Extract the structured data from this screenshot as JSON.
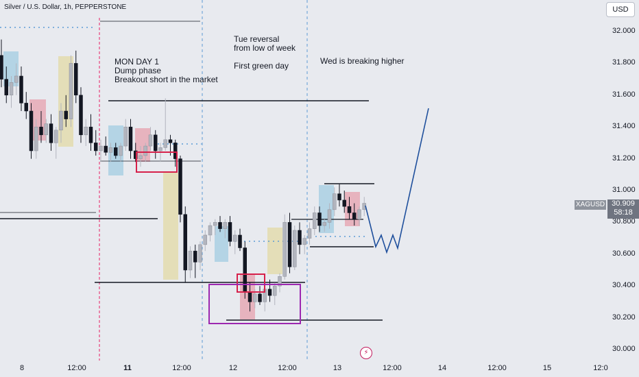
{
  "header": {
    "title": "Silver / U.S. Dollar, 1h, PEPPERSTONE",
    "currency_button": "USD"
  },
  "annotations": {
    "mon": [
      "MON DAY 1",
      "Dump phase",
      "Breakout short in the market"
    ],
    "tue": [
      "Tue reversal",
      "from low of week",
      "",
      "First green day"
    ],
    "wed": [
      "Wed is breaking higher"
    ]
  },
  "price_axis": {
    "ticks": [
      "32.000",
      "31.800",
      "31.600",
      "31.400",
      "31.200",
      "31.000",
      "30.800",
      "30.600",
      "30.400",
      "30.200",
      "30.000"
    ],
    "symbol": "XAGUSD",
    "last_price": "30.909",
    "countdown": "58:18"
  },
  "time_axis": {
    "ticks": [
      {
        "label": "8",
        "bold": false
      },
      {
        "label": "12:00",
        "bold": false
      },
      {
        "label": "11",
        "bold": true
      },
      {
        "label": "12:00",
        "bold": false
      },
      {
        "label": "12",
        "bold": false
      },
      {
        "label": "12:00",
        "bold": false
      },
      {
        "label": "13",
        "bold": false
      },
      {
        "label": "12:00",
        "bold": false
      },
      {
        "label": "14",
        "bold": false
      },
      {
        "label": "12:00",
        "bold": false
      },
      {
        "label": "15",
        "bold": false
      },
      {
        "label": "12:0",
        "bold": false
      }
    ]
  },
  "colors": {
    "background": "#e8eaef",
    "bull": "#b2b5be",
    "bear": "#131722",
    "projection": "#1e4f9c",
    "blue_box": "#aad0e3",
    "red_box": "#e6a9b5",
    "yellow_box": "#e3dcae",
    "red_rect": "#d6204a",
    "purple_rect": "#9c27b0",
    "pink_line": "#e91e63",
    "divider": "#5b9bd5"
  },
  "chart_data": {
    "type": "candlestick",
    "title": "Silver / U.S. Dollar, 1h, PEPPERSTONE",
    "symbol": "XAGUSD",
    "timeframe": "1h",
    "ylim": [
      30.0,
      32.0
    ],
    "candles": [
      [
        31.85,
        31.95,
        31.65,
        31.7
      ],
      [
        31.7,
        31.78,
        31.55,
        31.6
      ],
      [
        31.6,
        31.72,
        31.52,
        31.68
      ],
      [
        31.68,
        31.8,
        31.6,
        31.72
      ],
      [
        31.72,
        31.78,
        31.5,
        31.55
      ],
      [
        31.55,
        31.62,
        31.45,
        31.5
      ],
      [
        31.5,
        31.55,
        31.2,
        31.25
      ],
      [
        31.25,
        31.45,
        31.2,
        31.4
      ],
      [
        31.4,
        31.5,
        31.3,
        31.35
      ],
      [
        31.35,
        31.45,
        31.3,
        31.42
      ],
      [
        31.42,
        31.48,
        31.25,
        31.3
      ],
      [
        31.3,
        31.4,
        31.2,
        31.38
      ],
      [
        31.38,
        31.55,
        31.3,
        31.5
      ],
      [
        31.5,
        31.6,
        31.4,
        31.45
      ],
      [
        31.45,
        31.85,
        31.4,
        31.8
      ],
      [
        31.8,
        31.88,
        31.55,
        31.6
      ],
      [
        31.6,
        31.65,
        31.3,
        31.35
      ],
      [
        31.35,
        31.45,
        31.28,
        31.4
      ],
      [
        31.4,
        31.48,
        31.25,
        31.3
      ],
      [
        31.3,
        31.38,
        31.22,
        31.25
      ],
      [
        31.25,
        31.32,
        31.18,
        31.28
      ],
      [
        31.28,
        31.34,
        31.22,
        31.24
      ],
      [
        31.24,
        31.3,
        31.18,
        31.27
      ],
      [
        31.27,
        31.3,
        31.2,
        31.22
      ],
      [
        31.22,
        31.3,
        31.18,
        31.28
      ],
      [
        31.28,
        31.45,
        31.25,
        31.4
      ],
      [
        31.4,
        31.45,
        31.2,
        31.25
      ],
      [
        31.25,
        31.3,
        31.18,
        31.2
      ],
      [
        31.2,
        31.28,
        31.15,
        31.22
      ],
      [
        31.22,
        31.3,
        31.18,
        31.28
      ],
      [
        31.28,
        31.4,
        31.25,
        31.35
      ],
      [
        31.35,
        31.38,
        31.2,
        31.25
      ],
      [
        31.25,
        31.3,
        31.18,
        31.27
      ],
      [
        31.27,
        31.58,
        31.25,
        31.32
      ],
      [
        31.32,
        31.35,
        31.22,
        31.3
      ],
      [
        31.3,
        31.32,
        31.15,
        31.2
      ],
      [
        31.2,
        31.22,
        30.8,
        30.85
      ],
      [
        30.85,
        30.9,
        30.42,
        30.5
      ],
      [
        30.5,
        30.65,
        30.45,
        30.62
      ],
      [
        30.62,
        30.66,
        30.45,
        30.55
      ],
      [
        30.55,
        30.68,
        30.5,
        30.66
      ],
      [
        30.66,
        30.75,
        30.62,
        30.72
      ],
      [
        30.72,
        30.8,
        30.68,
        30.78
      ],
      [
        30.78,
        30.82,
        30.72,
        30.8
      ],
      [
        30.8,
        30.84,
        30.74,
        30.76
      ],
      [
        30.76,
        30.82,
        30.7,
        30.8
      ],
      [
        30.8,
        30.84,
        30.65,
        30.68
      ],
      [
        30.68,
        30.75,
        30.6,
        30.72
      ],
      [
        30.72,
        30.76,
        30.62,
        30.64
      ],
      [
        30.64,
        30.68,
        30.32,
        30.36
      ],
      [
        30.36,
        30.42,
        30.24,
        30.3
      ],
      [
        30.3,
        30.38,
        30.26,
        30.35
      ],
      [
        30.35,
        30.4,
        30.28,
        30.3
      ],
      [
        30.3,
        30.4,
        30.24,
        30.38
      ],
      [
        30.38,
        30.44,
        30.3,
        30.34
      ],
      [
        30.34,
        30.42,
        30.28,
        30.4
      ],
      [
        30.4,
        30.48,
        30.36,
        30.46
      ],
      [
        30.46,
        30.85,
        30.44,
        30.8
      ],
      [
        30.8,
        30.86,
        30.48,
        30.52
      ],
      [
        30.52,
        30.78,
        30.5,
        30.75
      ],
      [
        30.75,
        30.8,
        30.6,
        30.66
      ],
      [
        30.66,
        30.72,
        30.6,
        30.7
      ],
      [
        30.7,
        30.8,
        30.66,
        30.76
      ],
      [
        30.76,
        30.9,
        30.72,
        30.86
      ],
      [
        30.86,
        30.9,
        30.74,
        30.78
      ],
      [
        30.78,
        30.82,
        30.74,
        30.8
      ],
      [
        30.8,
        30.92,
        30.76,
        30.88
      ],
      [
        30.88,
        31.02,
        30.84,
        30.98
      ],
      [
        30.98,
        31.04,
        30.9,
        30.94
      ],
      [
        30.94,
        31.0,
        30.86,
        30.9
      ],
      [
        30.9,
        30.96,
        30.82,
        30.86
      ],
      [
        30.86,
        30.92,
        30.78,
        30.82
      ],
      [
        30.82,
        30.9,
        30.78,
        30.88
      ],
      [
        30.88,
        30.96,
        30.84,
        30.92
      ]
    ],
    "last_price": 30.909
  }
}
